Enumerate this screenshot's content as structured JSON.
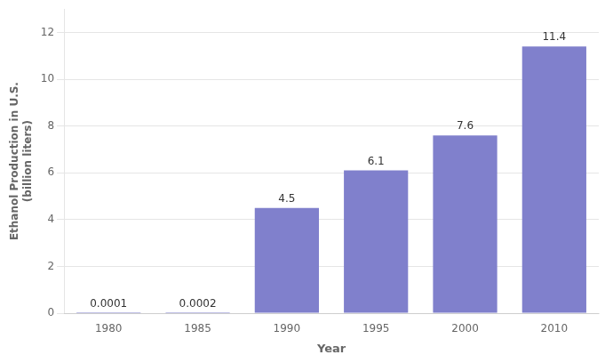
{
  "chart_data": {
    "type": "bar",
    "categories": [
      "1980",
      "1985",
      "1990",
      "1995",
      "2000",
      "2010"
    ],
    "values": [
      0.0001,
      0.0002,
      4.5,
      6.1,
      7.6,
      11.4
    ],
    "color": "#8080cc",
    "xlabel": "Year",
    "ylabel": [
      "Ethanol Production in U.S.",
      "(billion liters)"
    ],
    "ylim": [
      0,
      13
    ],
    "yticks": [
      0,
      2,
      4,
      6,
      8,
      10,
      12
    ],
    "grid": true,
    "data_labels": true
  }
}
